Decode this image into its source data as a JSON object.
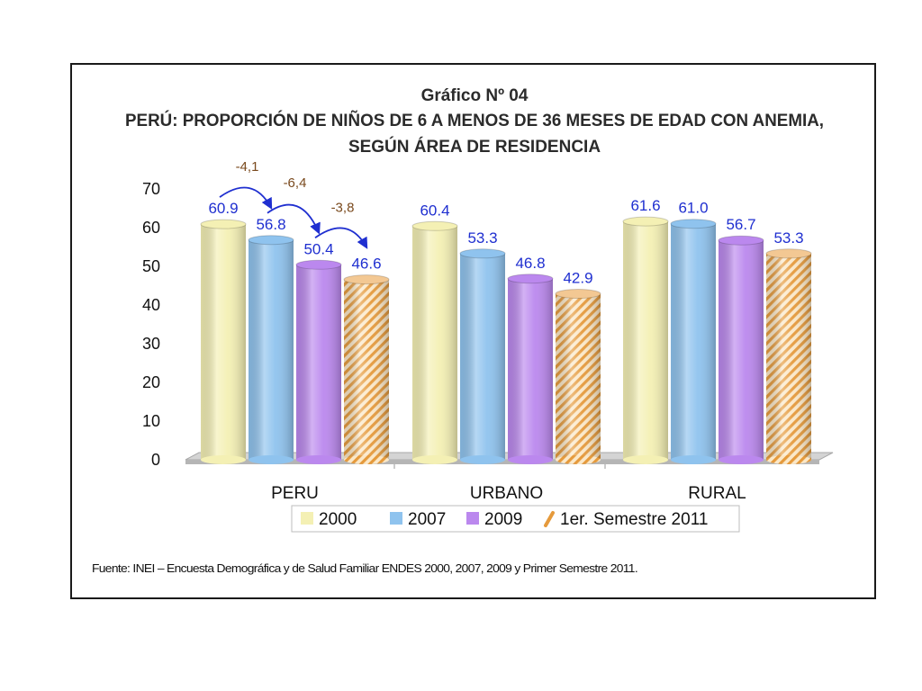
{
  "chart_data": {
    "type": "bar",
    "title_line1": "Gráfico Nº 04",
    "title_line2": "PERÚ: PROPORCIÓN DE NIÑOS DE 6 A MENOS DE 36 MESES DE EDAD CON ANEMIA,",
    "title_line3": "SEGÚN ÁREA DE RESIDENCIA",
    "categories": [
      "PERU",
      "URBANO",
      "RURAL"
    ],
    "series": [
      {
        "name": "2000",
        "values": [
          60.9,
          60.4,
          61.6
        ],
        "labels": [
          "60.9",
          "60.4",
          "61.6"
        ],
        "color": "#f4f0b4",
        "pattern": "solid"
      },
      {
        "name": "2007",
        "values": [
          56.8,
          53.3,
          61.0
        ],
        "labels": [
          "56.8",
          "53.3",
          "61.0"
        ],
        "color": "#8fc3ee",
        "pattern": "solid"
      },
      {
        "name": "2009",
        "values": [
          50.4,
          46.8,
          56.7
        ],
        "labels": [
          "50.4",
          "46.8",
          "56.7"
        ],
        "color": "#bb88ee",
        "pattern": "solid"
      },
      {
        "name": "1er. Semestre 2011",
        "values": [
          46.6,
          42.9,
          53.3
        ],
        "labels": [
          "46.6",
          "42.9",
          "53.3"
        ],
        "color": "#e8a24a",
        "pattern": "hatched"
      }
    ],
    "ylim": [
      0,
      70
    ],
    "yticks": [
      "0",
      "10",
      "20",
      "30",
      "40",
      "50",
      "60",
      "70"
    ],
    "annotations": [
      "-4,1",
      "-6,4",
      "-3,8"
    ],
    "legend_position": "bottom",
    "grid": false,
    "source": "Fuente: INEI – Encuesta Demográfica y de Salud Familiar ENDES 2000, 2007, 2009 y Primer Semestre 2011."
  }
}
